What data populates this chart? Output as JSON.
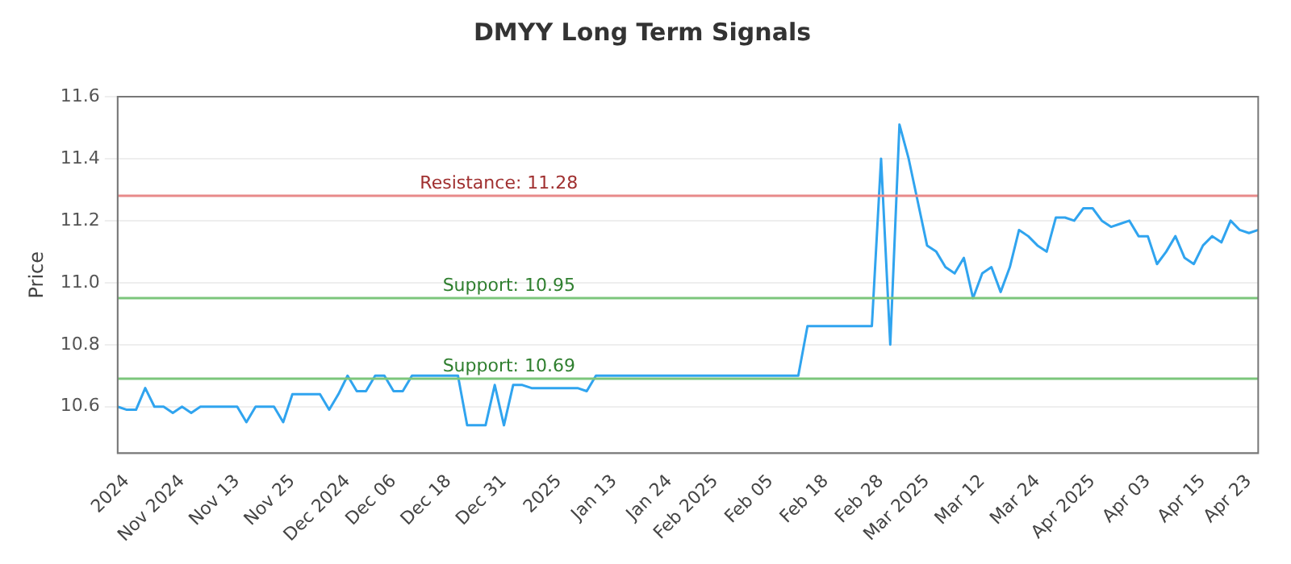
{
  "chart_data": {
    "type": "line",
    "title": "DMYY Long Term Signals",
    "ylabel": "Price",
    "categories": [
      null,
      "2024",
      null,
      null,
      null,
      null,
      null,
      "Nov 2024",
      null,
      null,
      null,
      null,
      null,
      "Nov 13",
      null,
      null,
      null,
      null,
      null,
      "Nov 25",
      null,
      null,
      null,
      null,
      null,
      "Dec 2024",
      null,
      null,
      null,
      null,
      "Dec 06",
      null,
      null,
      null,
      null,
      null,
      "Dec 18",
      null,
      null,
      null,
      null,
      null,
      "Dec 31",
      null,
      null,
      null,
      null,
      null,
      "2025",
      null,
      null,
      null,
      null,
      null,
      "Jan 13",
      null,
      null,
      null,
      null,
      null,
      "Jan 24",
      null,
      null,
      null,
      null,
      "Feb 2025",
      null,
      null,
      null,
      null,
      null,
      "Feb 05",
      null,
      null,
      null,
      null,
      null,
      "Feb 18",
      null,
      null,
      null,
      null,
      null,
      "Feb 28",
      null,
      null,
      null,
      null,
      "Mar 2025",
      null,
      null,
      null,
      null,
      null,
      "Mar 12",
      null,
      null,
      null,
      null,
      null,
      "Mar 24",
      null,
      null,
      null,
      null,
      null,
      "Apr 2025",
      null,
      null,
      null,
      null,
      null,
      "Apr 03",
      null,
      null,
      null,
      null,
      null,
      "Apr 15",
      null,
      null,
      null,
      null,
      "Apr 23",
      null
    ],
    "series": [
      {
        "color": "#30a4ef",
        "values": [
          10.6,
          10.59,
          10.59,
          10.66,
          10.6,
          10.6,
          10.58,
          10.6,
          10.58,
          10.6,
          10.6,
          10.6,
          10.6,
          10.6,
          10.55,
          10.6,
          10.6,
          10.6,
          10.55,
          10.64,
          10.64,
          10.64,
          10.64,
          10.59,
          10.64,
          10.7,
          10.65,
          10.65,
          10.7,
          10.7,
          10.65,
          10.65,
          10.7,
          10.7,
          10.7,
          10.7,
          10.7,
          10.7,
          10.54,
          10.54,
          10.54,
          10.67,
          10.54,
          10.67,
          10.67,
          10.66,
          10.66,
          10.66,
          10.66,
          10.66,
          10.66,
          10.65,
          10.7,
          10.7,
          10.7,
          10.7,
          10.7,
          10.7,
          10.7,
          10.7,
          10.7,
          10.7,
          10.7,
          10.7,
          10.7,
          10.7,
          10.7,
          10.7,
          10.7,
          10.7,
          10.7,
          10.7,
          10.7,
          10.7,
          10.7,
          10.86,
          10.86,
          10.86,
          10.86,
          10.86,
          10.86,
          10.86,
          10.86,
          11.4,
          10.8,
          11.51,
          11.4,
          11.26,
          11.12,
          11.1,
          11.05,
          11.03,
          11.08,
          10.95,
          11.03,
          11.05,
          10.97,
          11.05,
          11.17,
          11.15,
          11.12,
          11.1,
          11.21,
          11.21,
          11.2,
          11.24,
          11.24,
          11.2,
          11.18,
          11.19,
          11.2,
          11.15,
          11.15,
          11.06,
          11.1,
          11.15,
          11.08,
          11.06,
          11.12,
          11.15,
          11.13,
          11.2,
          11.17,
          11.16,
          11.17
        ]
      }
    ],
    "ylim": [
      10.45,
      11.6
    ],
    "yticks": [
      10.6,
      10.8,
      {
        "value": 11,
        "label": "11.0"
      },
      11.2,
      11.4,
      11.6
    ],
    "grid": "y",
    "legend": false,
    "marker": "none",
    "line_style": "solid",
    "ref_lines": [
      {
        "axis": "y",
        "value": 11.28,
        "label": "Resistance: 11.28",
        "color": "#e88a8a"
      },
      {
        "axis": "y",
        "value": 10.95,
        "label": "Support: 10.95",
        "color": "#7cc67c"
      },
      {
        "axis": "y",
        "value": 10.69,
        "label": "Support: 10.69",
        "color": "#7cc67c"
      }
    ]
  }
}
